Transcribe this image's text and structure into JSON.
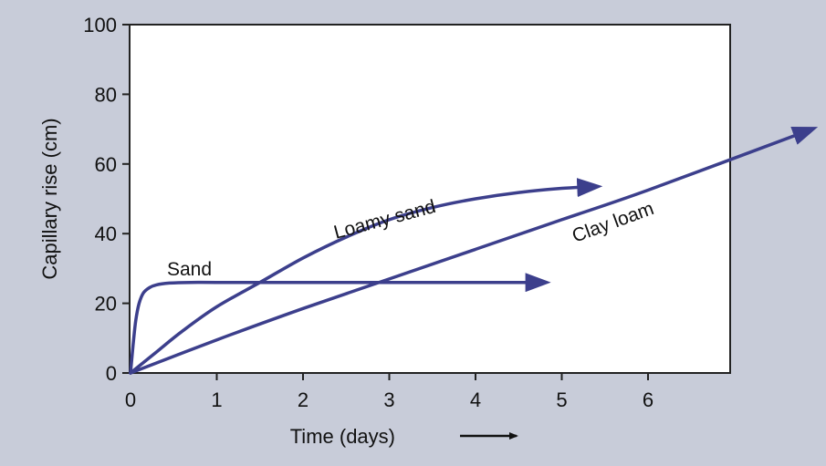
{
  "chart_data": {
    "type": "line",
    "xlabel": "Time (days)",
    "ylabel": "Capillary rise (cm)",
    "xlim": [
      0,
      7
    ],
    "ylim": [
      0,
      100
    ],
    "x_ticks": [
      0,
      1,
      2,
      3,
      4,
      5,
      6
    ],
    "y_ticks": [
      0,
      20,
      40,
      60,
      80,
      100
    ],
    "grid": false,
    "legend": "none",
    "colors": {
      "series": "#3c3f8c",
      "plot_bg": "#ffffff",
      "page_bg": "#c8ccd9",
      "text": "#111111"
    },
    "series": [
      {
        "name": "Sand",
        "x": [
          0,
          0.03,
          0.06,
          0.1,
          0.15,
          0.22,
          0.3,
          0.45,
          0.7,
          1.0,
          2.0,
          3.0,
          4.0,
          4.8
        ],
        "y": [
          0,
          8,
          15,
          20,
          23,
          24.5,
          25.3,
          25.8,
          26,
          26,
          26,
          26,
          26,
          26
        ]
      },
      {
        "name": "Loamy sand",
        "x": [
          0,
          0.3,
          0.6,
          1.0,
          1.5,
          2.0,
          2.5,
          3.0,
          3.5,
          4.0,
          4.5,
          5.0,
          5.4
        ],
        "y": [
          0,
          6,
          12,
          19,
          26,
          33,
          39,
          44,
          47.5,
          50,
          51.8,
          53,
          53.5
        ]
      },
      {
        "name": "Clay loam",
        "x": [
          0,
          1,
          2,
          3,
          4,
          5,
          6,
          7.9
        ],
        "y": [
          0,
          9.5,
          18.5,
          27,
          35.5,
          44,
          52.5,
          70
        ]
      }
    ]
  }
}
